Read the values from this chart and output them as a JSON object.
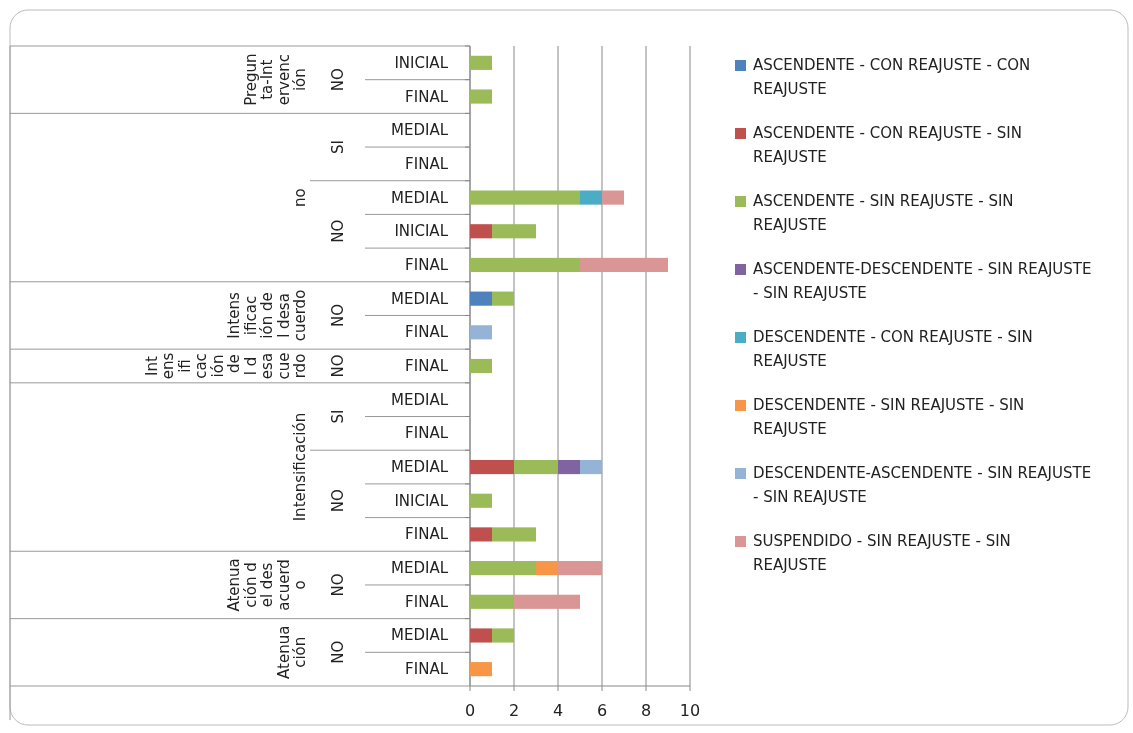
{
  "chart_data": {
    "type": "bar",
    "orientation": "horizontal",
    "stacked": true,
    "categories": [
      "INICIAL",
      "FINAL",
      "MEDIAL",
      "FINAL",
      "MEDIAL",
      "INICIAL",
      "FINAL",
      "MEDIAL",
      "FINAL",
      "FINAL",
      "MEDIAL",
      "FINAL",
      "MEDIAL",
      "INICIAL",
      "FINAL",
      "MEDIAL",
      "FINAL",
      "MEDIAL",
      "FINAL"
    ],
    "series": [
      {
        "name": "ASCENDENTE - CON REAJUSTE - CON REAJUSTE",
        "color": "#4f81bd",
        "values": [
          null,
          null,
          null,
          null,
          null,
          null,
          null,
          1,
          null,
          null,
          null,
          null,
          null,
          null,
          null,
          null,
          null,
          null,
          null
        ]
      },
      {
        "name": "ASCENDENTE - CON REAJUSTE - SIN REAJUSTE",
        "color": "#c0504d",
        "values": [
          null,
          null,
          null,
          null,
          null,
          1,
          null,
          null,
          null,
          null,
          null,
          null,
          2,
          null,
          1,
          null,
          null,
          1,
          null
        ]
      },
      {
        "name": "ASCENDENTE - SIN REAJUSTE - SIN REAJUSTE",
        "color": "#9bbb59",
        "values": [
          1,
          1,
          null,
          null,
          5,
          2,
          5,
          1,
          null,
          1,
          null,
          null,
          2,
          1,
          2,
          3,
          2,
          1,
          null
        ]
      },
      {
        "name": "ASCENDENTE-DESCENDENTE - SIN REAJUSTE - SIN REAJUSTE",
        "color": "#8064a2",
        "values": [
          null,
          null,
          null,
          null,
          null,
          null,
          null,
          null,
          null,
          null,
          null,
          null,
          1,
          null,
          null,
          null,
          null,
          null,
          null
        ]
      },
      {
        "name": "DESCENDENTE - CON REAJUSTE - SIN REAJUSTE",
        "color": "#4bacc6",
        "values": [
          null,
          null,
          null,
          null,
          1,
          null,
          null,
          null,
          null,
          null,
          null,
          null,
          null,
          null,
          null,
          null,
          null,
          null,
          null
        ]
      },
      {
        "name": "DESCENDENTE - SIN REAJUSTE - SIN REAJUSTE",
        "color": "#f79646",
        "values": [
          null,
          null,
          null,
          null,
          null,
          null,
          null,
          null,
          null,
          null,
          null,
          null,
          null,
          null,
          null,
          1,
          null,
          null,
          1
        ]
      },
      {
        "name": "DESCENDENTE-ASCENDENTE - SIN REAJUSTE - SIN REAJUSTE",
        "color": "#95b3d7",
        "values": [
          null,
          null,
          null,
          null,
          null,
          null,
          null,
          null,
          1,
          null,
          null,
          null,
          1,
          null,
          null,
          null,
          null,
          null,
          null
        ]
      },
      {
        "name": "SUSPENDIDO - SIN REAJUSTE - SIN REAJUSTE",
        "color": "#d99694",
        "values": [
          null,
          null,
          null,
          null,
          1,
          null,
          4,
          null,
          null,
          null,
          null,
          null,
          null,
          null,
          null,
          2,
          3,
          null,
          null
        ]
      }
    ],
    "annotations": [
      "Pregunta-Intervención",
      "no",
      "Intensificación del desacuerdo",
      "Intensificación del desacuerdo",
      "Intensificación",
      "Atenuación del desacuerdo",
      "Atenuación",
      "NO",
      "SI",
      "NO",
      "NO",
      "NO",
      "SI",
      "NO",
      "NO",
      "NO"
    ],
    "xlim": [
      0,
      10
    ],
    "xticks": [
      0,
      2,
      4,
      6,
      8,
      10
    ],
    "grid": "x",
    "legend": "right"
  }
}
